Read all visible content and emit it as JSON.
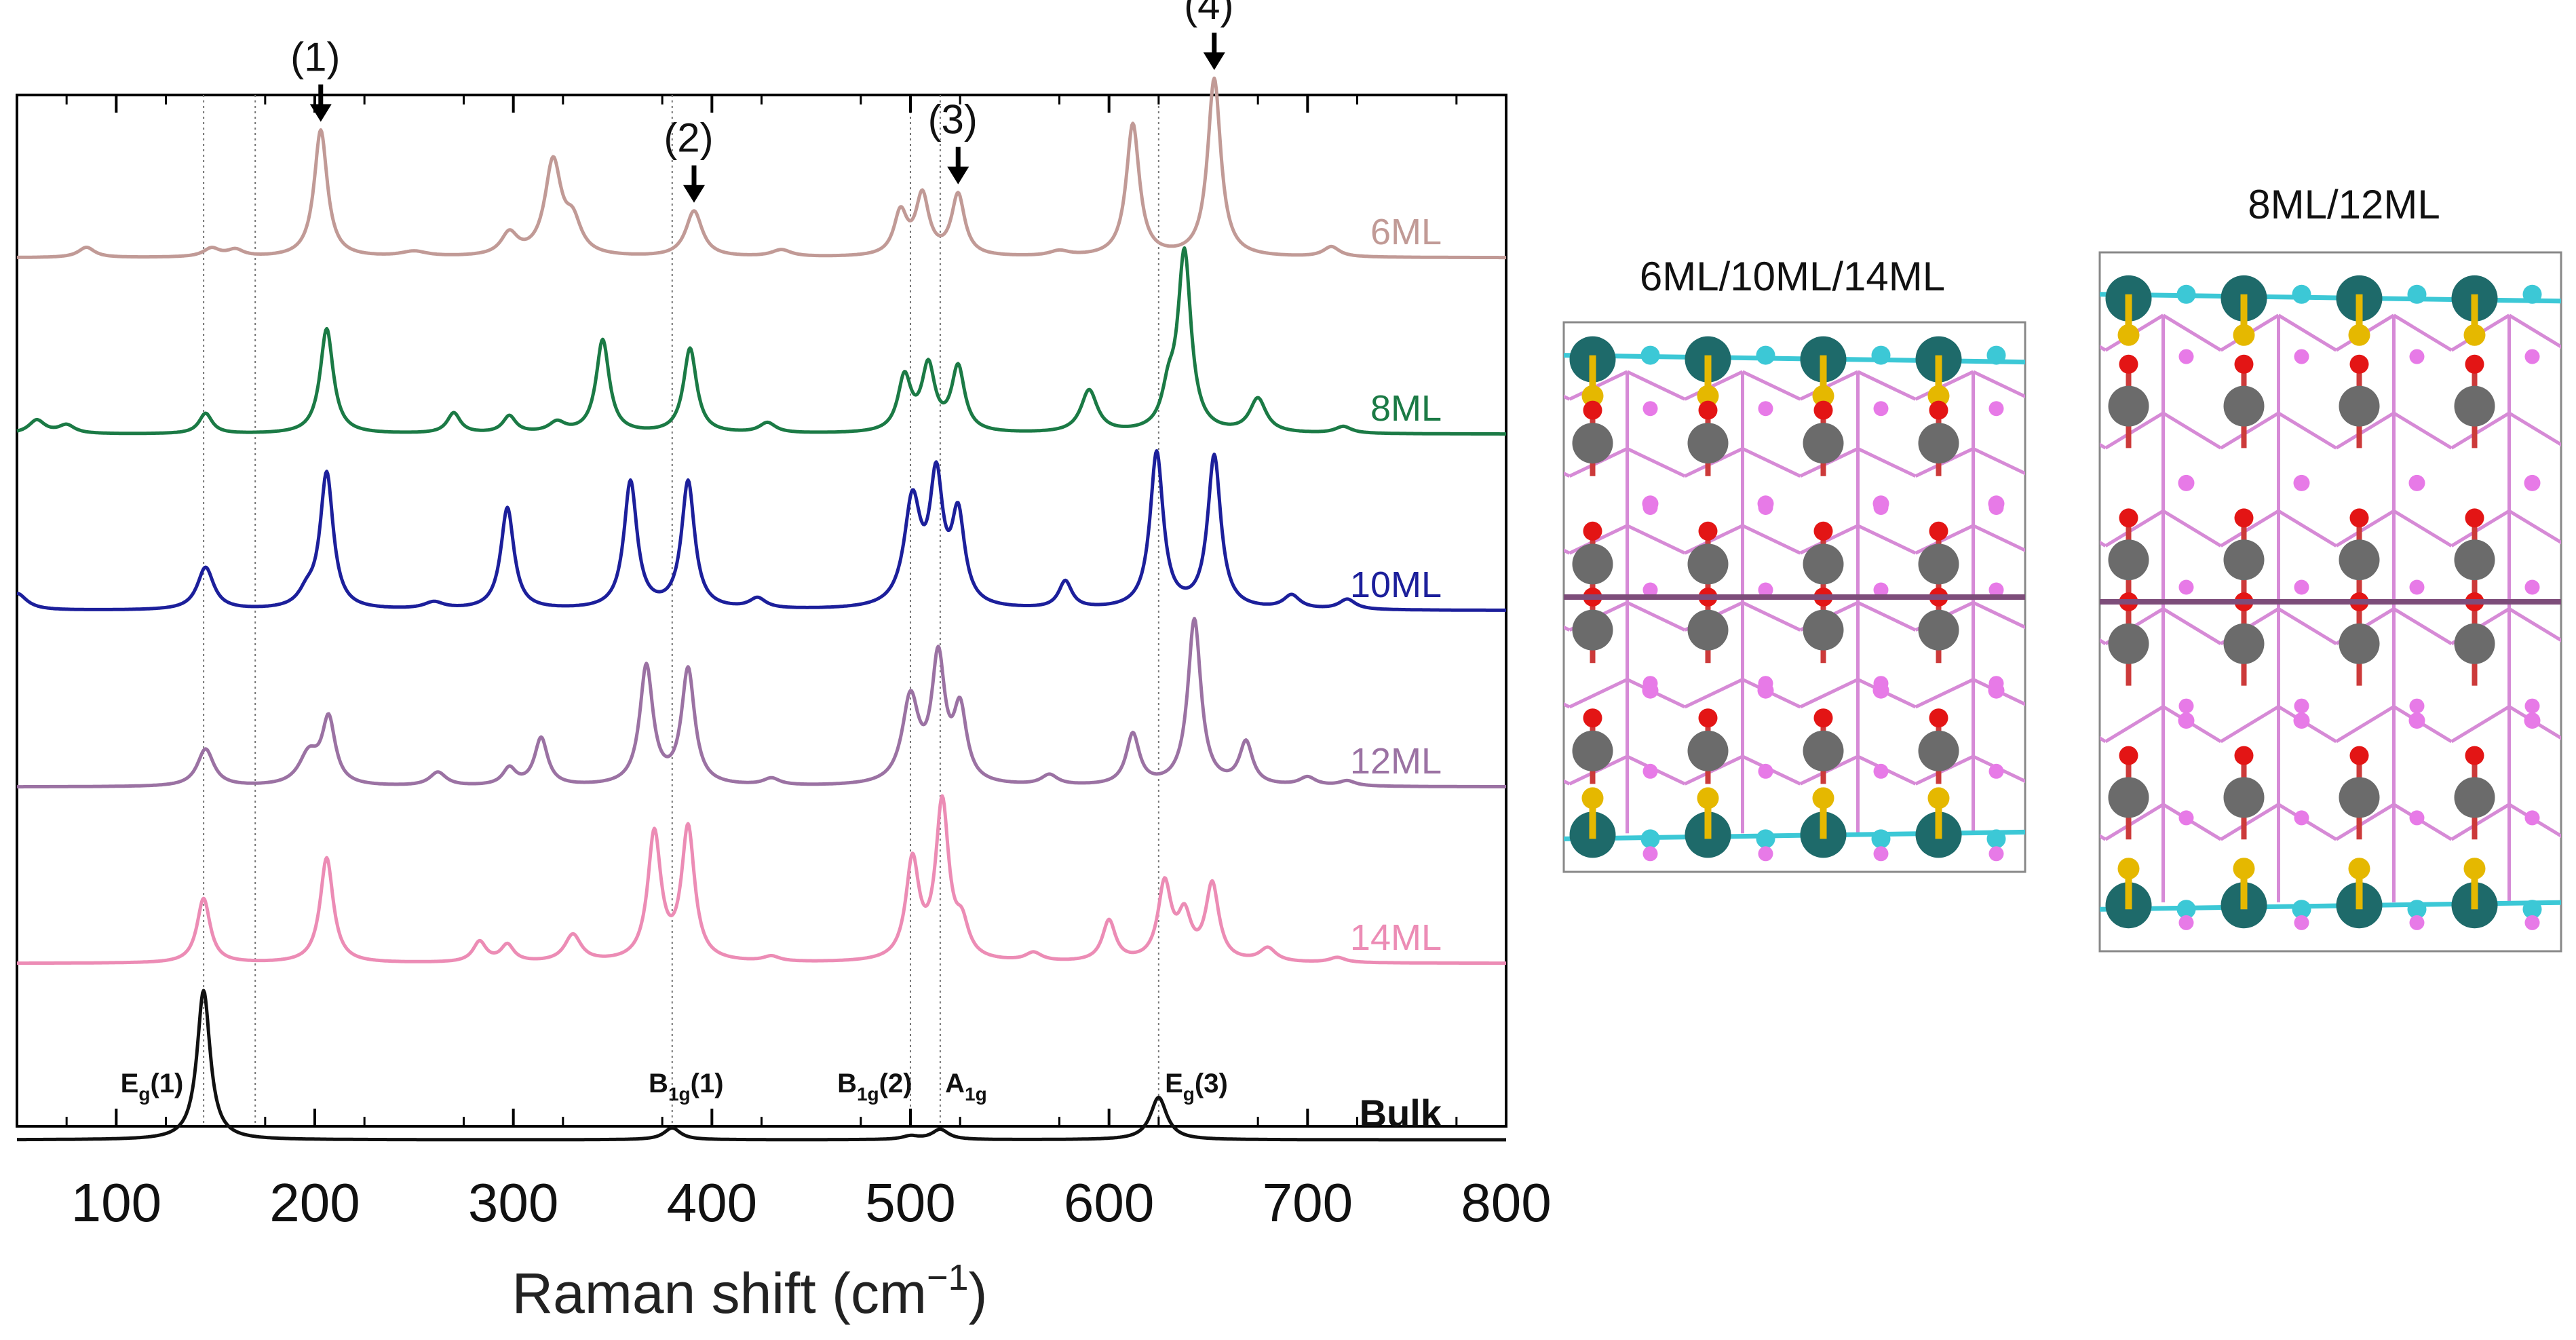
{
  "chart_data": {
    "type": "line",
    "xlabel": "Raman shift (cm",
    "xlabel_sup": "−1",
    "xlabel_close": ")",
    "xlim": [
      50,
      800
    ],
    "xticks": [
      100,
      200,
      300,
      400,
      500,
      600,
      700,
      800
    ],
    "ylabel": "",
    "grid": false,
    "reference_lines": [
      144,
      170,
      380,
      500,
      515,
      625
    ],
    "series": [
      {
        "name": "6ML",
        "color": "#c19a96",
        "offset": 4,
        "peaks": [
          [
            85,
            0.06,
            5
          ],
          [
            148,
            0.05,
            5
          ],
          [
            160,
            0.04,
            5
          ],
          [
            203,
            0.75,
            4
          ],
          [
            250,
            0.03,
            8
          ],
          [
            298,
            0.13,
            5
          ],
          [
            320,
            0.55,
            5
          ],
          [
            330,
            0.18,
            5
          ],
          [
            391,
            0.27,
            5
          ],
          [
            435,
            0.04,
            6
          ],
          [
            495,
            0.25,
            4
          ],
          [
            506,
            0.35,
            4
          ],
          [
            524,
            0.36,
            4
          ],
          [
            575,
            0.03,
            6
          ],
          [
            612,
            0.78,
            4
          ],
          [
            653,
            1.05,
            4
          ],
          [
            712,
            0.06,
            5
          ]
        ]
      },
      {
        "name": "8ML",
        "color": "#1b7a45",
        "offset": 3,
        "peaks": [
          [
            60,
            0.08,
            5
          ],
          [
            75,
            0.05,
            5
          ],
          [
            145,
            0.12,
            4
          ],
          [
            206,
            0.62,
            4
          ],
          [
            270,
            0.12,
            4
          ],
          [
            298,
            0.1,
            4
          ],
          [
            322,
            0.06,
            5
          ],
          [
            345,
            0.55,
            4
          ],
          [
            389,
            0.5,
            4
          ],
          [
            428,
            0.06,
            5
          ],
          [
            497,
            0.32,
            4
          ],
          [
            509,
            0.38,
            4
          ],
          [
            524,
            0.38,
            4
          ],
          [
            590,
            0.25,
            5
          ],
          [
            630,
            0.2,
            4
          ],
          [
            638,
            1.05,
            4
          ],
          [
            675,
            0.2,
            5
          ],
          [
            718,
            0.04,
            5
          ]
        ]
      },
      {
        "name": "10ML",
        "color": "#1c1f9b",
        "offset": 2,
        "peaks": [
          [
            50,
            0.1,
            6
          ],
          [
            145,
            0.25,
            5
          ],
          [
            196,
            0.08,
            5
          ],
          [
            206,
            0.8,
            4
          ],
          [
            260,
            0.04,
            6
          ],
          [
            297,
            0.6,
            4
          ],
          [
            359,
            0.75,
            4
          ],
          [
            388,
            0.75,
            4
          ],
          [
            423,
            0.06,
            5
          ],
          [
            501,
            0.62,
            5
          ],
          [
            513,
            0.72,
            4
          ],
          [
            524,
            0.52,
            4
          ],
          [
            578,
            0.16,
            4
          ],
          [
            624,
            0.92,
            4
          ],
          [
            653,
            0.9,
            4
          ],
          [
            692,
            0.08,
            5
          ],
          [
            720,
            0.06,
            5
          ]
        ]
      },
      {
        "name": "12ML",
        "color": "#9b72a3",
        "offset": 1,
        "peaks": [
          [
            145,
            0.22,
            5
          ],
          [
            197,
            0.18,
            6
          ],
          [
            207,
            0.38,
            4
          ],
          [
            262,
            0.08,
            5
          ],
          [
            298,
            0.1,
            4
          ],
          [
            314,
            0.28,
            4
          ],
          [
            367,
            0.7,
            4
          ],
          [
            388,
            0.68,
            4
          ],
          [
            430,
            0.04,
            5
          ],
          [
            500,
            0.5,
            5
          ],
          [
            514,
            0.72,
            4
          ],
          [
            525,
            0.42,
            4
          ],
          [
            570,
            0.06,
            5
          ],
          [
            612,
            0.3,
            4
          ],
          [
            643,
            0.98,
            4
          ],
          [
            669,
            0.25,
            4
          ],
          [
            700,
            0.05,
            5
          ],
          [
            720,
            0.03,
            5
          ]
        ]
      },
      {
        "name": "14ML",
        "color": "#ec8cb5",
        "offset": 0,
        "peaks": [
          [
            144,
            0.38,
            4
          ],
          [
            206,
            0.62,
            4
          ],
          [
            283,
            0.12,
            4
          ],
          [
            297,
            0.1,
            4
          ],
          [
            330,
            0.16,
            5
          ],
          [
            371,
            0.75,
            4
          ],
          [
            388,
            0.78,
            4
          ],
          [
            430,
            0.03,
            5
          ],
          [
            501,
            0.58,
            4
          ],
          [
            516,
            0.92,
            4
          ],
          [
            526,
            0.18,
            4
          ],
          [
            562,
            0.05,
            5
          ],
          [
            600,
            0.24,
            4
          ],
          [
            628,
            0.45,
            4
          ],
          [
            638,
            0.25,
            4
          ],
          [
            652,
            0.45,
            4
          ],
          [
            680,
            0.08,
            5
          ],
          [
            715,
            0.03,
            5
          ]
        ]
      },
      {
        "name": "Bulk",
        "color": "#111111",
        "offset": -1,
        "peaks": [
          [
            144,
            0.88,
            4
          ],
          [
            380,
            0.07,
            5
          ],
          [
            500,
            0.02,
            5
          ],
          [
            515,
            0.06,
            5
          ],
          [
            625,
            0.25,
            5
          ]
        ]
      }
    ],
    "peak_labels": [
      {
        "x": 118,
        "base": "E",
        "sub": "g",
        "num": "(1)"
      },
      {
        "x": 387,
        "base": "B",
        "sub": "1g",
        "num": "(1)"
      },
      {
        "x": 482,
        "base": "B",
        "sub": "1g",
        "num": "(2)"
      },
      {
        "x": 528,
        "base": "A",
        "sub": "1g",
        "num": ""
      },
      {
        "x": 644,
        "base": "E",
        "sub": "g",
        "num": "(3)"
      }
    ],
    "arrow_annotations": [
      {
        "label": "(1)",
        "x": 203
      },
      {
        "label": "(2)",
        "x": 391
      },
      {
        "label": "(3)",
        "x": 524
      },
      {
        "label": "(4)",
        "x": 653
      }
    ]
  },
  "structures": [
    {
      "title": "6ML/10ML/14ML"
    },
    {
      "title": "8ML/12ML"
    }
  ],
  "colors": {
    "axis": "#000000",
    "guide": "#777777",
    "ti_surface": "#1e6a6a",
    "o_surface": "#3cc8d6",
    "s_link": "#e5b800",
    "ti": "#6b6b6b",
    "o": "#e31515",
    "bond_o": "#cc3a3a",
    "bond_pink": "#d68ad6",
    "atom_pink": "#e77ae7",
    "mid_line": "#7d4d7a"
  }
}
